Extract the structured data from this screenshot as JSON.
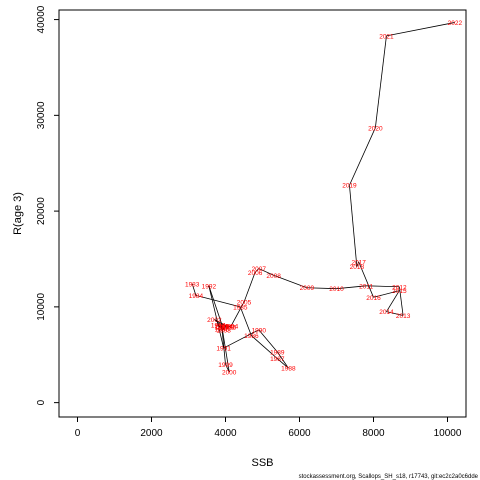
{
  "chart_data": {
    "type": "line",
    "xlabel": "SSB",
    "ylabel": "R(age 3)",
    "xlim": [
      -500,
      10500
    ],
    "ylim": [
      -1500,
      41000
    ],
    "x_ticks": [
      0,
      2000,
      4000,
      6000,
      8000,
      10000
    ],
    "y_ticks": [
      0,
      10000,
      20000,
      30000,
      40000
    ],
    "grid": false,
    "series": [
      {
        "color": "#000000",
        "point_label_color": "#ff0000",
        "points": [
          {
            "label": "1983",
            "x": 3100,
            "y": 12400
          },
          {
            "label": "1984",
            "x": 3200,
            "y": 11200
          },
          {
            "label": "1985",
            "x": 4400,
            "y": 10000
          },
          {
            "label": "1986",
            "x": 4700,
            "y": 7000
          },
          {
            "label": "1987",
            "x": 5400,
            "y": 4600
          },
          {
            "label": "1988",
            "x": 5700,
            "y": 3600
          },
          {
            "label": "1989",
            "x": 5400,
            "y": 5300
          },
          {
            "label": "1990",
            "x": 4900,
            "y": 7600
          },
          {
            "label": "1991",
            "x": 3950,
            "y": 5700
          },
          {
            "label": "1992",
            "x": 3550,
            "y": 12200
          },
          {
            "label": "1993",
            "x": 3950,
            "y": 7600
          },
          {
            "label": "1994",
            "x": 4000,
            "y": 8000
          },
          {
            "label": "1995",
            "x": 4100,
            "y": 7900
          },
          {
            "label": "1996",
            "x": 3900,
            "y": 7700
          },
          {
            "label": "1997",
            "x": 3800,
            "y": 8100
          },
          {
            "label": "1998",
            "x": 3900,
            "y": 7900
          },
          {
            "label": "1999",
            "x": 4000,
            "y": 4000
          },
          {
            "label": "2000",
            "x": 4100,
            "y": 3200
          },
          {
            "label": "2001",
            "x": 3900,
            "y": 8000
          },
          {
            "label": "2002",
            "x": 3700,
            "y": 8700
          },
          {
            "label": "2003",
            "x": 4050,
            "y": 7900
          },
          {
            "label": "2004",
            "x": 4150,
            "y": 8000
          },
          {
            "label": "2005",
            "x": 4500,
            "y": 10500
          },
          {
            "label": "2006",
            "x": 4800,
            "y": 13600
          },
          {
            "label": "2007",
            "x": 4900,
            "y": 14000
          },
          {
            "label": "2008",
            "x": 5300,
            "y": 13300
          },
          {
            "label": "2009",
            "x": 6200,
            "y": 12000
          },
          {
            "label": "2010",
            "x": 7000,
            "y": 11900
          },
          {
            "label": "2011",
            "x": 7800,
            "y": 12200
          },
          {
            "label": "2012",
            "x": 8700,
            "y": 12100
          },
          {
            "label": "2013",
            "x": 8800,
            "y": 9100
          },
          {
            "label": "2014",
            "x": 8350,
            "y": 9500
          },
          {
            "label": "2015",
            "x": 8700,
            "y": 11700
          },
          {
            "label": "2016",
            "x": 8000,
            "y": 11000
          },
          {
            "label": "2017",
            "x": 7600,
            "y": 14700
          },
          {
            "label": "2018",
            "x": 7550,
            "y": 14200
          },
          {
            "label": "2019",
            "x": 7350,
            "y": 22700
          },
          {
            "label": "2020",
            "x": 8050,
            "y": 28700
          },
          {
            "label": "2021",
            "x": 8350,
            "y": 38300
          },
          {
            "label": "2022",
            "x": 10200,
            "y": 39700
          }
        ]
      }
    ]
  },
  "footer": {
    "source": "stockassessment.org, Scallops_SH_s18, r17743, git:ec2c2a0c6dde"
  }
}
